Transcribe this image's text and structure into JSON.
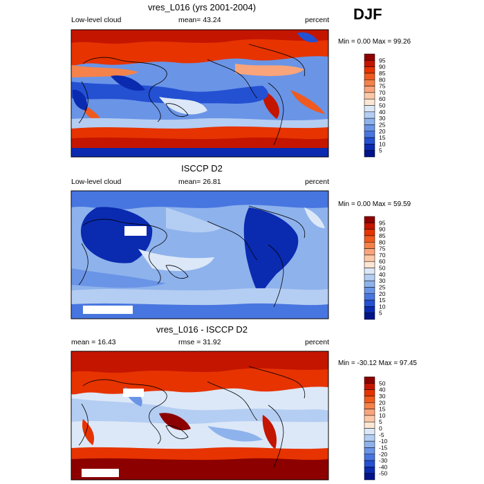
{
  "season": "DJF",
  "chart_data": [
    {
      "type": "heatmap",
      "title": "vres_L016 (yrs 2001-2004)",
      "left_label": "Low-level cloud",
      "center_label": "mean=  43.24",
      "right_label": "percent",
      "stats": "Min =   0.00 Max =  99.26",
      "colorbar_levels": [
        "95",
        "90",
        "85",
        "80",
        "75",
        "70",
        "60",
        "50",
        "40",
        "30",
        "25",
        "20",
        "15",
        "10",
        "5"
      ],
      "colors": [
        "#8c0000",
        "#c41500",
        "#e63300",
        "#f05a1e",
        "#f5824a",
        "#f9a47a",
        "#fcc8a8",
        "#fde6d4",
        "#dce8f8",
        "#b4cdf2",
        "#8eb2ec",
        "#6a94e6",
        "#4876e0",
        "#2450d2",
        "#0a2ab0",
        "#00138a"
      ]
    },
    {
      "type": "heatmap",
      "title": "ISCCP D2",
      "left_label": "Low-level cloud",
      "center_label": "mean=  26.81",
      "right_label": "percent",
      "stats": "Min =   0.00 Max =  59.59",
      "colorbar_levels": [
        "95",
        "90",
        "85",
        "80",
        "75",
        "70",
        "60",
        "50",
        "40",
        "30",
        "25",
        "20",
        "15",
        "10",
        "5"
      ],
      "colors": [
        "#8c0000",
        "#c41500",
        "#e63300",
        "#f05a1e",
        "#f5824a",
        "#f9a47a",
        "#fcc8a8",
        "#fde6d4",
        "#dce8f8",
        "#b4cdf2",
        "#8eb2ec",
        "#6a94e6",
        "#4876e0",
        "#2450d2",
        "#0a2ab0",
        "#00138a"
      ]
    },
    {
      "type": "heatmap",
      "title": "vres_L016 - ISCCP D2",
      "left_label": "mean =  16.43",
      "center_label": "rmse =  31.92",
      "right_label": "percent",
      "stats": "Min = -30.12 Max =  97.45",
      "colorbar_levels": [
        "50",
        "40",
        "30",
        "20",
        "15",
        "10",
        "5",
        "0",
        "-5",
        "-10",
        "-15",
        "-20",
        "-30",
        "-40",
        "-50"
      ],
      "colors": [
        "#8c0000",
        "#c41500",
        "#e63300",
        "#f05a1e",
        "#f5824a",
        "#f9a47a",
        "#fcc8a8",
        "#fde6d4",
        "#dce8f8",
        "#b4cdf2",
        "#8eb2ec",
        "#6a94e6",
        "#4876e0",
        "#2450d2",
        "#0a2ab0",
        "#00138a"
      ]
    }
  ]
}
